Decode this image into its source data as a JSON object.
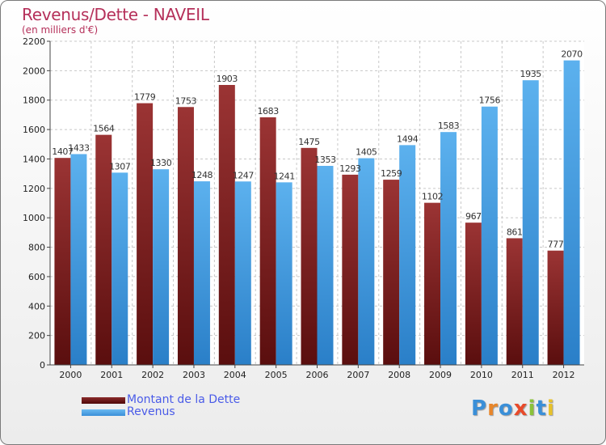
{
  "title": "Revenus/Dette - NAVEIL",
  "subtitle": "(en milliers d'€)",
  "logo": "Proxiti",
  "chart_data": {
    "type": "bar",
    "title": "Revenus/Dette - NAVEIL",
    "subtitle": "(en milliers d'€)",
    "categories": [
      "2000",
      "2001",
      "2002",
      "2003",
      "2004",
      "2005",
      "2006",
      "2007",
      "2008",
      "2009",
      "2010",
      "2011",
      "2012"
    ],
    "series": [
      {
        "name": "Montant de la Dette",
        "color": "#8a2a2a",
        "values": [
          1407,
          1564,
          1779,
          1753,
          1903,
          1683,
          1475,
          1293,
          1259,
          1102,
          967,
          861,
          777
        ],
        "labels": [
          "1407",
          "1564",
          "1779",
          "1753",
          "1903",
          "1683",
          "1475",
          "1293",
          "1259",
          "1102",
          "967",
          "861",
          "777"
        ]
      },
      {
        "name": "Revenus",
        "color": "#4da6e8",
        "values": [
          1433,
          1307,
          1330,
          1248,
          1247,
          1241,
          1353,
          1405,
          1494,
          1583,
          1756,
          1935,
          2070
        ],
        "labels": [
          "1433",
          "1307",
          "1330",
          "1248",
          "1247",
          "1241",
          "1353",
          "1405",
          "1494",
          "1583",
          "1756",
          "1935",
          "2070"
        ]
      }
    ],
    "ylim": [
      0,
      2200
    ],
    "yticks": [
      "0",
      "200",
      "400",
      "600",
      "800",
      "1000",
      "1200",
      "1400",
      "1600",
      "1800",
      "2000",
      "2200"
    ],
    "grid": true,
    "legend": "bottom-left"
  }
}
